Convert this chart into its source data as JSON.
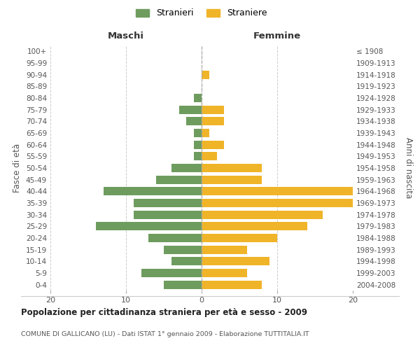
{
  "age_groups": [
    "100+",
    "95-99",
    "90-94",
    "85-89",
    "80-84",
    "75-79",
    "70-74",
    "65-69",
    "60-64",
    "55-59",
    "50-54",
    "45-49",
    "40-44",
    "35-39",
    "30-34",
    "25-29",
    "20-24",
    "15-19",
    "10-14",
    "5-9",
    "0-4"
  ],
  "birth_years": [
    "≤ 1908",
    "1909-1913",
    "1914-1918",
    "1919-1923",
    "1924-1928",
    "1929-1933",
    "1934-1938",
    "1939-1943",
    "1944-1948",
    "1949-1953",
    "1954-1958",
    "1959-1963",
    "1964-1968",
    "1969-1973",
    "1974-1978",
    "1979-1983",
    "1984-1988",
    "1989-1993",
    "1994-1998",
    "1999-2003",
    "2004-2008"
  ],
  "maschi": [
    0,
    0,
    0,
    0,
    1,
    3,
    2,
    1,
    1,
    1,
    4,
    6,
    13,
    9,
    9,
    14,
    7,
    5,
    4,
    8,
    5
  ],
  "femmine": [
    0,
    0,
    1,
    0,
    0,
    3,
    3,
    1,
    3,
    2,
    8,
    8,
    20,
    20,
    16,
    14,
    10,
    6,
    9,
    6,
    8
  ],
  "color_maschi": "#6e9c5e",
  "color_femmine": "#f0b429",
  "background_color": "#ffffff",
  "grid_color": "#cccccc",
  "title": "Popolazione per cittadinanza straniera per età e sesso - 2009",
  "subtitle": "COMUNE DI GALLICANO (LU) - Dati ISTAT 1° gennaio 2009 - Elaborazione TUTTITALIA.IT",
  "xlabel_left": "Maschi",
  "xlabel_right": "Femmine",
  "ylabel_left": "Fasce di età",
  "ylabel_right": "Anni di nascita",
  "legend_maschi": "Stranieri",
  "legend_femmine": "Straniere",
  "xlim": 20
}
